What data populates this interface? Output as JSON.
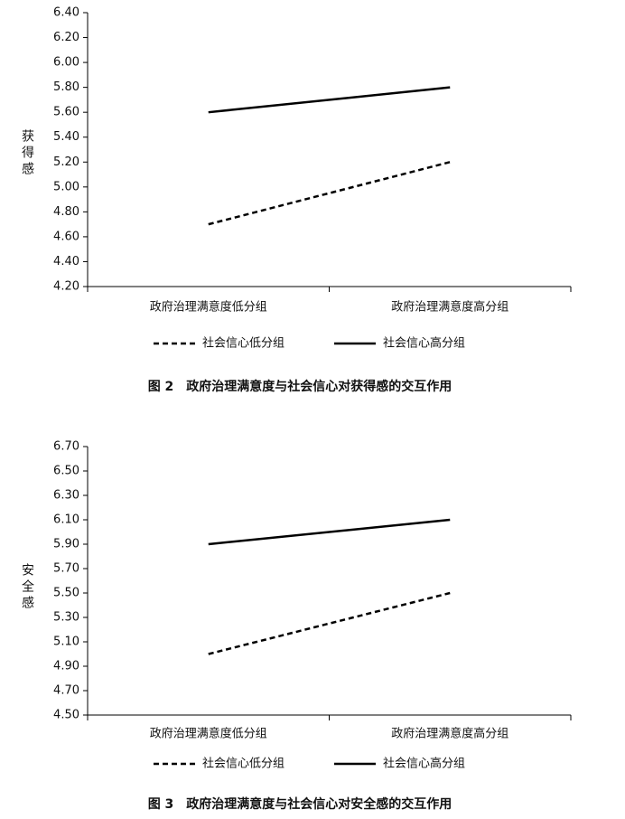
{
  "chart_data": [
    {
      "type": "line",
      "title": "图 2　政府治理满意度与社会信心对获得感的交互作用",
      "y_label": "获得感",
      "categories": [
        "政府治理满意度低分组",
        "政府治理满意度高分组"
      ],
      "series": [
        {
          "name": "社会信心低分组",
          "color": "#000000",
          "line_style": "dashed",
          "values": [
            4.7,
            5.2
          ]
        },
        {
          "name": "社会信心高分组",
          "color": "#000000",
          "line_style": "solid",
          "values": [
            5.6,
            5.8
          ]
        }
      ],
      "ylim": [
        4.2,
        6.4
      ],
      "yticks": [
        {
          "value": 4.2,
          "label": "4.20"
        },
        {
          "value": 4.4,
          "label": "4.40"
        },
        {
          "value": 4.6,
          "label": "4.60"
        },
        {
          "value": 4.8,
          "label": "4.80"
        },
        {
          "value": 5.0,
          "label": "5.00"
        },
        {
          "value": 5.2,
          "label": "5.20"
        },
        {
          "value": 5.4,
          "label": "5.40"
        },
        {
          "value": 5.6,
          "label": "5.60"
        },
        {
          "value": 5.8,
          "label": "5.80"
        },
        {
          "value": 6.0,
          "label": "6.00"
        },
        {
          "value": 6.2,
          "label": "6.20"
        },
        {
          "value": 6.4,
          "label": "6.40"
        }
      ]
    },
    {
      "type": "line",
      "title": "图 3　政府治理满意度与社会信心对安全感的交互作用",
      "y_label": "安全感",
      "categories": [
        "政府治理满意度低分组",
        "政府治理满意度高分组"
      ],
      "series": [
        {
          "name": "社会信心低分组",
          "color": "#000000",
          "line_style": "dashed",
          "values": [
            5.0,
            5.5
          ]
        },
        {
          "name": "社会信心高分组",
          "color": "#000000",
          "line_style": "solid",
          "values": [
            5.9,
            6.1
          ]
        }
      ],
      "ylim": [
        4.5,
        6.7
      ],
      "yticks": [
        {
          "value": 4.5,
          "label": "4.50"
        },
        {
          "value": 4.7,
          "label": "4.70"
        },
        {
          "value": 4.9,
          "label": "4.90"
        },
        {
          "value": 5.1,
          "label": "5.10"
        },
        {
          "value": 5.3,
          "label": "5.30"
        },
        {
          "value": 5.5,
          "label": "5.50"
        },
        {
          "value": 5.7,
          "label": "5.70"
        },
        {
          "value": 5.9,
          "label": "5.90"
        },
        {
          "value": 6.1,
          "label": "6.10"
        },
        {
          "value": 6.3,
          "label": "6.30"
        },
        {
          "value": 6.5,
          "label": "6.50"
        },
        {
          "value": 6.7,
          "label": "6.70"
        }
      ]
    }
  ]
}
